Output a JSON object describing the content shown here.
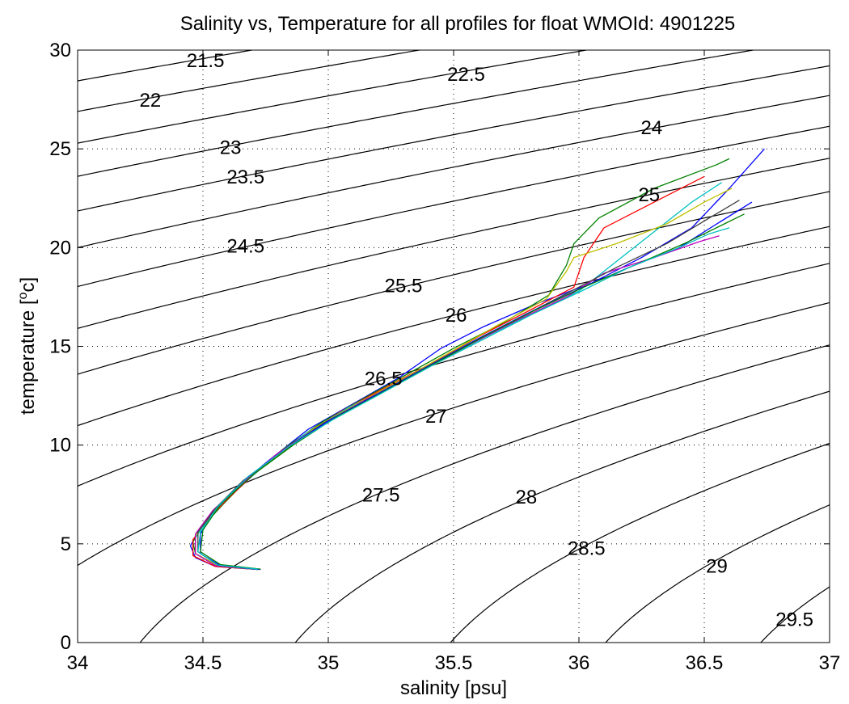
{
  "chart_data": {
    "type": "line",
    "title": "Salinity vs, Temperature for all profiles for float WMOId: 4901225",
    "xlabel": "salinity [psu]",
    "ylabel_base": "temperature [",
    "ylabel_sup": "o",
    "ylabel_tail": "c]",
    "xlim": [
      34,
      37
    ],
    "ylim": [
      0,
      30
    ],
    "grid": "dotted",
    "x_ticks": [
      34,
      34.5,
      35,
      35.5,
      36,
      36.5,
      37
    ],
    "x_tick_labels": [
      "34",
      "34.5",
      "35",
      "35.5",
      "36",
      "36.5",
      "37"
    ],
    "y_ticks": [
      0,
      5,
      10,
      15,
      20,
      25,
      30
    ],
    "y_tick_labels": [
      "0",
      "5",
      "10",
      "15",
      "20",
      "25",
      "30"
    ],
    "density_contours": {
      "levels": [
        21.5,
        22,
        22.5,
        23,
        23.5,
        24,
        24.5,
        25,
        25.5,
        26,
        26.5,
        27,
        27.5,
        28,
        28.5,
        29,
        29.5
      ],
      "color": "#000000",
      "labels": [
        {
          "text": "21.5",
          "s": 34.51,
          "t": 29.4
        },
        {
          "text": "22",
          "s": 34.29,
          "t": 27.4
        },
        {
          "text": "22.5",
          "s": 35.55,
          "t": 28.7
        },
        {
          "text": "23",
          "s": 34.61,
          "t": 25.0
        },
        {
          "text": "23.5",
          "s": 34.67,
          "t": 23.5
        },
        {
          "text": "24",
          "s": 36.29,
          "t": 26.0
        },
        {
          "text": "24.5",
          "s": 34.67,
          "t": 20.0
        },
        {
          "text": "25",
          "s": 36.28,
          "t": 22.6
        },
        {
          "text": "25.5",
          "s": 35.3,
          "t": 18.0
        },
        {
          "text": "26",
          "s": 35.51,
          "t": 16.5
        },
        {
          "text": "26.5",
          "s": 35.22,
          "t": 13.3
        },
        {
          "text": "27",
          "s": 35.43,
          "t": 11.4
        },
        {
          "text": "27.5",
          "s": 35.21,
          "t": 7.4
        },
        {
          "text": "28",
          "s": 35.79,
          "t": 7.3
        },
        {
          "text": "28.5",
          "s": 36.03,
          "t": 4.7
        },
        {
          "text": "29",
          "s": 36.55,
          "t": 3.8
        },
        {
          "text": "29.5",
          "s": 36.86,
          "t": 1.1
        }
      ]
    },
    "series": [
      {
        "color": "#0000ff",
        "values": [
          [
            34.72,
            3.7
          ],
          [
            34.55,
            3.85
          ],
          [
            34.47,
            4.3
          ],
          [
            34.45,
            4.9
          ],
          [
            34.48,
            5.6
          ],
          [
            34.55,
            6.6
          ],
          [
            34.63,
            7.8
          ],
          [
            34.76,
            9.2
          ],
          [
            34.92,
            10.8
          ],
          [
            35.1,
            12.1
          ],
          [
            35.28,
            13.4
          ],
          [
            35.45,
            14.9
          ],
          [
            35.62,
            16.0
          ],
          [
            35.82,
            17.1
          ],
          [
            36.05,
            18.2
          ],
          [
            36.25,
            19.5
          ],
          [
            36.45,
            21.0
          ],
          [
            36.6,
            23.0
          ],
          [
            36.74,
            25.0
          ]
        ]
      },
      {
        "color": "#008000",
        "values": [
          [
            34.72,
            3.72
          ],
          [
            34.56,
            3.9
          ],
          [
            34.47,
            4.5
          ],
          [
            34.46,
            5.1
          ],
          [
            34.5,
            5.9
          ],
          [
            34.58,
            7.0
          ],
          [
            34.68,
            8.3
          ],
          [
            34.82,
            9.8
          ],
          [
            34.98,
            11.2
          ],
          [
            35.16,
            12.5
          ],
          [
            35.33,
            13.7
          ],
          [
            35.5,
            14.9
          ],
          [
            35.7,
            16.2
          ],
          [
            35.88,
            17.6
          ],
          [
            35.95,
            19.1
          ],
          [
            35.98,
            20.2
          ],
          [
            36.08,
            21.5
          ],
          [
            36.3,
            23.0
          ],
          [
            36.55,
            24.2
          ],
          [
            36.6,
            24.5
          ]
        ]
      },
      {
        "color": "#ff0000",
        "values": [
          [
            34.72,
            3.7
          ],
          [
            34.55,
            3.85
          ],
          [
            34.46,
            4.4
          ],
          [
            34.46,
            5.2
          ],
          [
            34.51,
            6.1
          ],
          [
            34.6,
            7.3
          ],
          [
            34.72,
            8.7
          ],
          [
            34.88,
            10.3
          ],
          [
            35.05,
            11.7
          ],
          [
            35.24,
            13.0
          ],
          [
            35.42,
            14.2
          ],
          [
            35.6,
            15.5
          ],
          [
            35.8,
            16.8
          ],
          [
            35.98,
            18.0
          ],
          [
            36.02,
            19.5
          ],
          [
            36.1,
            21.0
          ],
          [
            36.3,
            22.3
          ],
          [
            36.5,
            23.6
          ]
        ]
      },
      {
        "color": "#00bfbf",
        "values": [
          [
            34.72,
            3.7
          ],
          [
            34.55,
            3.9
          ],
          [
            34.47,
            4.5
          ],
          [
            34.47,
            5.3
          ],
          [
            34.52,
            6.3
          ],
          [
            34.61,
            7.5
          ],
          [
            34.74,
            8.9
          ],
          [
            34.9,
            10.5
          ],
          [
            35.08,
            11.9
          ],
          [
            35.27,
            13.1
          ],
          [
            35.45,
            14.3
          ],
          [
            35.63,
            15.5
          ],
          [
            35.82,
            16.7
          ],
          [
            36.0,
            17.8
          ],
          [
            36.15,
            19.3
          ],
          [
            36.3,
            20.8
          ],
          [
            36.45,
            22.3
          ],
          [
            36.57,
            23.3
          ]
        ]
      },
      {
        "color": "#bfbf00",
        "values": [
          [
            34.72,
            3.72
          ],
          [
            34.56,
            3.9
          ],
          [
            34.47,
            4.5
          ],
          [
            34.47,
            5.4
          ],
          [
            34.53,
            6.5
          ],
          [
            34.63,
            7.8
          ],
          [
            34.78,
            9.3
          ],
          [
            34.95,
            10.9
          ],
          [
            35.13,
            12.2
          ],
          [
            35.32,
            13.5
          ],
          [
            35.5,
            14.8
          ],
          [
            35.68,
            16.1
          ],
          [
            35.87,
            17.4
          ],
          [
            35.95,
            18.8
          ],
          [
            35.98,
            19.5
          ],
          [
            36.15,
            20.2
          ],
          [
            36.35,
            21.2
          ],
          [
            36.5,
            22.3
          ],
          [
            36.61,
            23.0
          ]
        ]
      },
      {
        "color": "#bf00bf",
        "values": [
          [
            34.72,
            3.72
          ],
          [
            34.55,
            3.9
          ],
          [
            34.47,
            4.5
          ],
          [
            34.47,
            5.5
          ],
          [
            34.54,
            6.7
          ],
          [
            34.65,
            8.0
          ],
          [
            34.8,
            9.6
          ],
          [
            34.97,
            11.0
          ],
          [
            35.15,
            12.3
          ],
          [
            35.35,
            13.6
          ],
          [
            35.55,
            15.0
          ],
          [
            35.75,
            16.3
          ],
          [
            35.95,
            17.5
          ],
          [
            36.1,
            18.7
          ],
          [
            36.3,
            19.5
          ],
          [
            36.48,
            20.3
          ],
          [
            36.56,
            20.6
          ]
        ]
      },
      {
        "color": "#404040",
        "values": [
          [
            34.72,
            3.72
          ],
          [
            34.56,
            3.92
          ],
          [
            34.48,
            4.6
          ],
          [
            34.48,
            5.6
          ],
          [
            34.55,
            6.8
          ],
          [
            34.66,
            8.2
          ],
          [
            34.82,
            9.7
          ],
          [
            34.98,
            11.1
          ],
          [
            35.17,
            12.4
          ],
          [
            35.37,
            13.8
          ],
          [
            35.57,
            15.2
          ],
          [
            35.77,
            16.5
          ],
          [
            35.97,
            17.8
          ],
          [
            36.15,
            19.0
          ],
          [
            36.35,
            20.2
          ],
          [
            36.52,
            21.5
          ],
          [
            36.64,
            22.4
          ]
        ]
      },
      {
        "color": "#0000ff",
        "values": [
          [
            34.73,
            3.7
          ],
          [
            34.57,
            3.9
          ],
          [
            34.49,
            4.5
          ],
          [
            34.49,
            5.5
          ],
          [
            34.56,
            6.9
          ],
          [
            34.68,
            8.4
          ],
          [
            34.84,
            9.9
          ],
          [
            35.01,
            11.3
          ],
          [
            35.2,
            12.6
          ],
          [
            35.4,
            14.0
          ],
          [
            35.6,
            15.4
          ],
          [
            35.8,
            16.7
          ],
          [
            36.0,
            17.9
          ],
          [
            36.2,
            19.0
          ],
          [
            36.4,
            20.0
          ],
          [
            36.55,
            21.2
          ],
          [
            36.69,
            22.3
          ]
        ]
      },
      {
        "color": "#008000",
        "values": [
          [
            34.73,
            3.72
          ],
          [
            34.57,
            3.95
          ],
          [
            34.49,
            4.6
          ],
          [
            34.5,
            5.7
          ],
          [
            34.57,
            7.0
          ],
          [
            34.7,
            8.5
          ],
          [
            34.86,
            10.0
          ],
          [
            35.03,
            11.4
          ],
          [
            35.22,
            12.7
          ],
          [
            35.42,
            14.1
          ],
          [
            35.62,
            15.5
          ],
          [
            35.82,
            16.8
          ],
          [
            36.02,
            18.0
          ],
          [
            36.22,
            19.1
          ],
          [
            36.42,
            20.2
          ],
          [
            36.58,
            21.2
          ],
          [
            36.66,
            21.7
          ]
        ]
      },
      {
        "color": "#00bfbf",
        "values": [
          [
            34.72,
            3.72
          ],
          [
            34.56,
            3.92
          ],
          [
            34.48,
            4.6
          ],
          [
            34.49,
            5.6
          ],
          [
            34.56,
            6.9
          ],
          [
            34.68,
            8.4
          ],
          [
            34.84,
            9.9
          ],
          [
            35.02,
            11.3
          ],
          [
            35.21,
            12.6
          ],
          [
            35.41,
            14.0
          ],
          [
            35.61,
            15.3
          ],
          [
            35.81,
            16.6
          ],
          [
            36.01,
            17.8
          ],
          [
            36.2,
            19.0
          ],
          [
            36.4,
            20.0
          ],
          [
            36.52,
            20.7
          ],
          [
            36.6,
            21.0
          ]
        ]
      }
    ]
  }
}
